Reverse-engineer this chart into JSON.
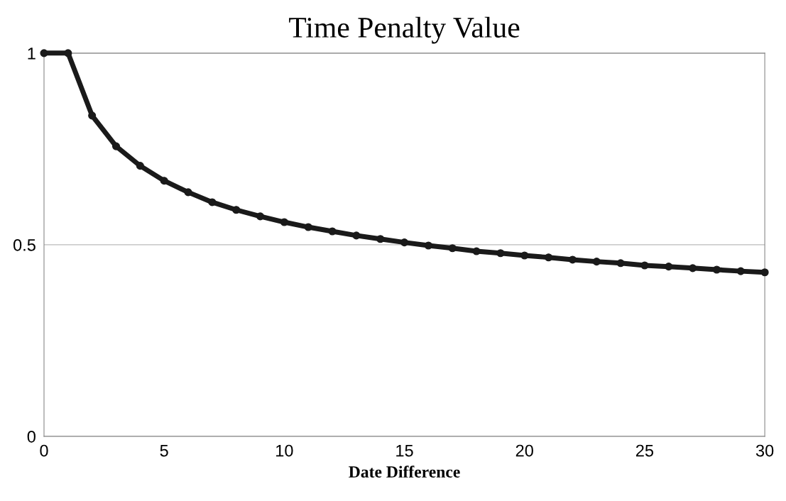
{
  "chart_data": {
    "type": "line",
    "title": "Time Penalty Value",
    "xlabel": "Date Difference",
    "x": [
      0,
      1,
      2,
      3,
      4,
      5,
      6,
      7,
      8,
      9,
      10,
      11,
      12,
      13,
      14,
      15,
      16,
      17,
      18,
      19,
      20,
      21,
      22,
      23,
      24,
      25,
      26,
      27,
      28,
      29,
      30
    ],
    "series": [
      {
        "color": "#1a1a1a",
        "values": [
          1,
          1,
          0.837,
          0.757,
          0.706,
          0.667,
          0.637,
          0.611,
          0.591,
          0.574,
          0.559,
          0.546,
          0.535,
          0.524,
          0.515,
          0.506,
          0.498,
          0.491,
          0.483,
          0.478,
          0.472,
          0.467,
          0.461,
          0.456,
          0.452,
          0.446,
          0.443,
          0.439,
          0.435,
          0.431,
          0.428
        ]
      }
    ],
    "xlim": [
      0,
      30
    ],
    "xticks": [
      0,
      5,
      10,
      15,
      20,
      25,
      30
    ],
    "ylim": [
      0,
      1
    ],
    "yticks": [
      0,
      0.5,
      1
    ],
    "grid": "y",
    "marker": "circle",
    "line_style": "solid"
  }
}
